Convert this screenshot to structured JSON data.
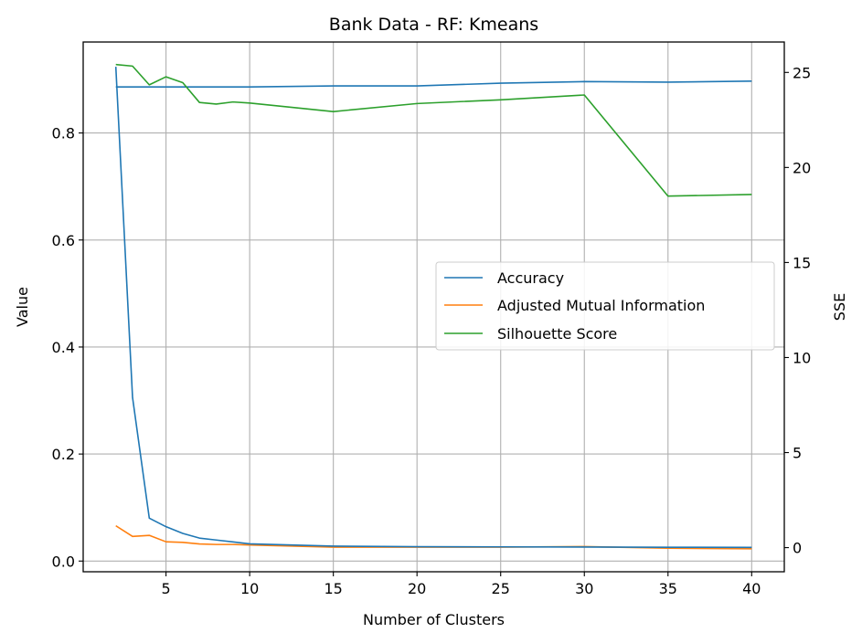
{
  "chart_data": {
    "type": "line",
    "title": "Bank Data - RF: Kmeans",
    "xlabel": "Number of Clusters",
    "ylabel": "Value",
    "y2label": "SSE",
    "xlim": [
      0.05,
      41.95
    ],
    "ylim": [
      -0.02,
      0.97
    ],
    "y2lim": [
      -1.27,
      26.6
    ],
    "xticks": [
      5,
      10,
      15,
      20,
      25,
      30,
      35,
      40
    ],
    "yticks": [
      0.0,
      0.2,
      0.4,
      0.6,
      0.8
    ],
    "y2ticks": [
      0,
      5,
      10,
      15,
      20,
      25
    ],
    "grid": true,
    "legend_position": "center-right",
    "colors": {
      "accuracy": "#1f77b4",
      "ami": "#ff7f0e",
      "silhouette": "#2ca02c"
    },
    "series": [
      {
        "name": "Accuracy",
        "axis": "left",
        "color": "#1f77b4",
        "x": [
          2,
          3,
          4,
          5,
          6,
          7,
          8,
          9,
          10,
          15,
          20,
          25,
          30,
          35,
          40
        ],
        "y": [
          0.886,
          0.886,
          0.886,
          0.886,
          0.886,
          0.886,
          0.886,
          0.886,
          0.886,
          0.888,
          0.888,
          0.893,
          0.896,
          0.895,
          0.897
        ]
      },
      {
        "name": "Adjusted Mutual Information",
        "axis": "left",
        "color": "#ff7f0e",
        "x": [
          2,
          3,
          4,
          5,
          6,
          7,
          8,
          9,
          10,
          15,
          20,
          25,
          30,
          35,
          40
        ],
        "y": [
          0.066,
          0.046,
          0.048,
          0.036,
          0.035,
          0.032,
          0.031,
          0.031,
          0.03,
          0.026,
          0.026,
          0.026,
          0.027,
          0.024,
          0.023
        ]
      },
      {
        "name": "Silhouette Score",
        "axis": "left",
        "color": "#2ca02c",
        "x": [
          2,
          3,
          4,
          5,
          6,
          7,
          8,
          9,
          10,
          15,
          20,
          25,
          30,
          35,
          40
        ],
        "y": [
          0.928,
          0.925,
          0.89,
          0.905,
          0.894,
          0.857,
          0.854,
          0.858,
          0.856,
          0.84,
          0.855,
          0.862,
          0.871,
          0.682,
          0.685
        ]
      },
      {
        "name": "SSE",
        "axis": "right",
        "color": "#1f77b4",
        "x": [
          2,
          3,
          4,
          5,
          6,
          7,
          8,
          9,
          10,
          15,
          20,
          25,
          30,
          35,
          40
        ],
        "y": [
          25.3,
          7.9,
          1.55,
          1.1,
          0.75,
          0.5,
          0.4,
          0.3,
          0.2,
          0.08,
          0.05,
          0.04,
          0.03,
          0.02,
          0.01
        ]
      }
    ]
  },
  "legend": {
    "items": [
      {
        "label": "Accuracy",
        "color": "#1f77b4"
      },
      {
        "label": "Adjusted Mutual Information",
        "color": "#ff7f0e"
      },
      {
        "label": "Silhouette Score",
        "color": "#2ca02c"
      }
    ]
  }
}
